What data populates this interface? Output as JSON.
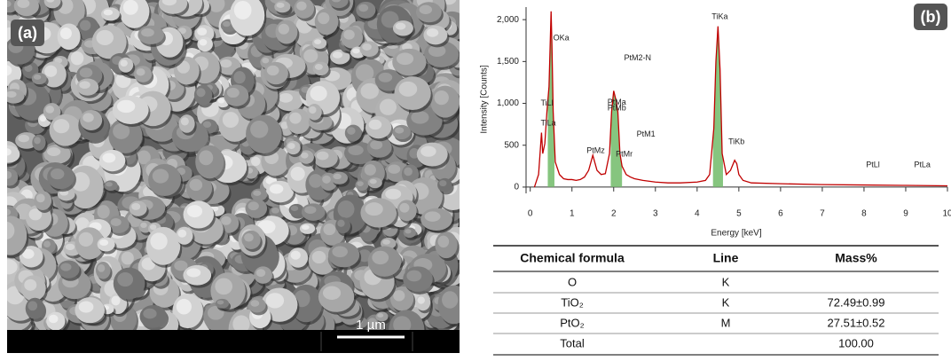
{
  "panel_a": {
    "label": "(a)",
    "scale_bar": "1 µm"
  },
  "chart_data": {
    "type": "line",
    "label": "(b)",
    "x_label": "Energy [keV]",
    "y_label": "Intensity [Counts]",
    "xlim": [
      -0.1,
      10
    ],
    "xticks": [
      0,
      1,
      2,
      3,
      4,
      5,
      6,
      7,
      8,
      9,
      10
    ],
    "ylim": [
      -75,
      2150
    ],
    "yticks": [
      0,
      500,
      {
        "value": 1000,
        "label": "1,000"
      },
      {
        "value": 1500,
        "label": "1,500"
      },
      {
        "value": 2000,
        "label": "2,000"
      }
    ],
    "x": [
      0.1,
      0.2,
      0.27,
      0.3,
      0.35,
      0.4,
      0.45,
      0.5,
      0.52,
      0.55,
      0.6,
      0.7,
      0.8,
      0.9,
      1.0,
      1.1,
      1.2,
      1.3,
      1.4,
      1.5,
      1.6,
      1.7,
      1.8,
      1.9,
      1.95,
      2.0,
      2.05,
      2.1,
      2.15,
      2.2,
      2.3,
      2.4,
      2.5,
      2.7,
      3.0,
      3.3,
      3.6,
      4.0,
      4.2,
      4.3,
      4.4,
      4.45,
      4.5,
      4.55,
      4.6,
      4.7,
      4.8,
      4.9,
      4.95,
      5.0,
      5.1,
      5.3,
      6,
      7,
      8,
      9,
      10
    ],
    "series": [
      {
        "color": "#c00000",
        "values": [
          0,
          150,
          650,
          400,
          520,
          900,
          1200,
          2100,
          1700,
          900,
          300,
          150,
          100,
          90,
          90,
          80,
          90,
          120,
          200,
          380,
          200,
          150,
          160,
          400,
          900,
          1150,
          1050,
          900,
          400,
          250,
          150,
          120,
          100,
          80,
          60,
          50,
          50,
          60,
          80,
          150,
          700,
          1500,
          1920,
          1400,
          400,
          150,
          200,
          320,
          280,
          150,
          80,
          50,
          40,
          30,
          25,
          20,
          15
        ]
      }
    ],
    "fill_color": "#86c57f",
    "fill_ranges": [
      [
        0.42,
        0.58
      ],
      [
        1.93,
        2.2
      ],
      [
        4.38,
        4.62
      ]
    ],
    "annotations": [
      {
        "text": "OKa",
        "x": 0.55,
        "y": 1780
      },
      {
        "text": "TiLl",
        "x": 0.25,
        "y": 1000
      },
      {
        "text": "TiLa",
        "x": 0.25,
        "y": 760
      },
      {
        "text": "PtMz",
        "x": 1.35,
        "y": 430
      },
      {
        "text": "PtMa",
        "x": 1.85,
        "y": 1010
      },
      {
        "text": "PtMb",
        "x": 1.85,
        "y": 940
      },
      {
        "text": "PtMr",
        "x": 2.05,
        "y": 390
      },
      {
        "text": "PtM2-N",
        "x": 2.25,
        "y": 1540
      },
      {
        "text": "PtM1",
        "x": 2.55,
        "y": 630
      },
      {
        "text": "TiKa",
        "x": 4.35,
        "y": 2030
      },
      {
        "text": "TiKb",
        "x": 4.75,
        "y": 540
      },
      {
        "text": "PtLl",
        "x": 8.05,
        "y": 265
      },
      {
        "text": "PtLa",
        "x": 9.2,
        "y": 265
      }
    ]
  },
  "table": {
    "headers": [
      "Chemical formula",
      "Line",
      "Mass%"
    ],
    "rows": [
      [
        "O",
        "K"
      ],
      [
        "TiO₂",
        "K",
        "72.49±0.99"
      ],
      [
        "PtO₂",
        "M",
        "27.51±0.52"
      ],
      [
        "Total",
        "",
        "100.00"
      ]
    ]
  }
}
